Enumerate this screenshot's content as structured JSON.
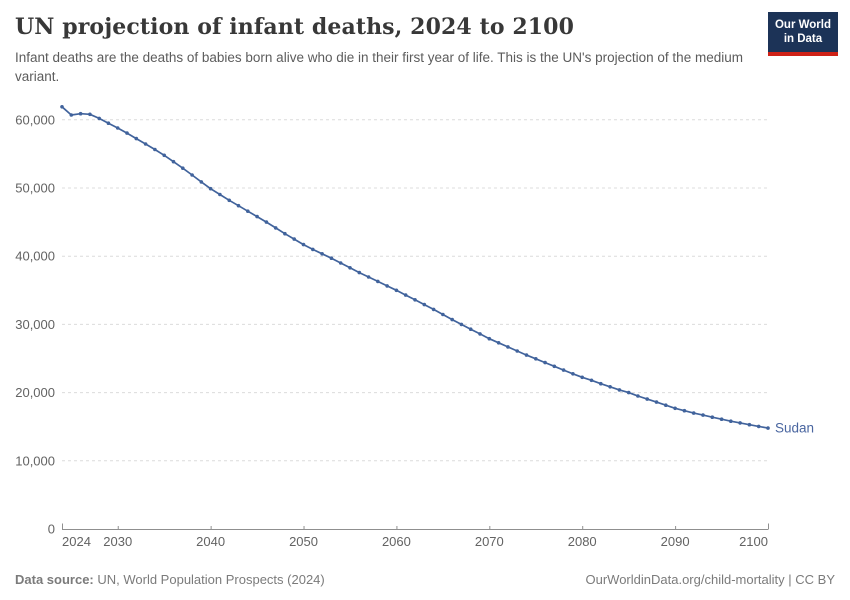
{
  "header": {
    "title": "UN projection of infant deaths, 2024 to 2100",
    "subtitle": "Infant deaths are the deaths of babies born alive who die in their first year of life. This is the UN's projection of the medium variant.",
    "logo": {
      "line1": "Our World",
      "line2": "in Data"
    }
  },
  "chart_data": {
    "type": "line",
    "title": "UN projection of infant deaths, 2024 to 2100",
    "entity_label": "Sudan",
    "xlabel": "",
    "ylabel": "",
    "xlim": [
      2024,
      2100
    ],
    "ylim": [
      0,
      62000
    ],
    "grid": "horizontal-dashed",
    "legend_position": "end-of-line-label",
    "xticks": [
      2024,
      2030,
      2040,
      2050,
      2060,
      2070,
      2080,
      2090,
      2100
    ],
    "yticks": [
      0,
      10000,
      20000,
      30000,
      40000,
      50000,
      60000
    ],
    "ytick_labels": [
      "0",
      "10,000",
      "20,000",
      "30,000",
      "40,000",
      "50,000",
      "60,000"
    ],
    "x": [
      2024,
      2025,
      2026,
      2027,
      2028,
      2029,
      2030,
      2031,
      2032,
      2033,
      2034,
      2035,
      2036,
      2037,
      2038,
      2039,
      2040,
      2041,
      2042,
      2043,
      2044,
      2045,
      2046,
      2047,
      2048,
      2049,
      2050,
      2051,
      2052,
      2053,
      2054,
      2055,
      2056,
      2057,
      2058,
      2059,
      2060,
      2061,
      2062,
      2063,
      2064,
      2065,
      2066,
      2067,
      2068,
      2069,
      2070,
      2071,
      2072,
      2073,
      2074,
      2075,
      2076,
      2077,
      2078,
      2079,
      2080,
      2081,
      2082,
      2083,
      2084,
      2085,
      2086,
      2087,
      2088,
      2089,
      2090,
      2091,
      2092,
      2093,
      2094,
      2095,
      2096,
      2097,
      2098,
      2099,
      2100
    ],
    "series": [
      {
        "name": "Sudan",
        "values": [
          61900,
          60700,
          60900,
          60800,
          60200,
          59500,
          58800,
          58050,
          57250,
          56450,
          55650,
          54800,
          53850,
          52900,
          51900,
          50900,
          49900,
          49050,
          48200,
          47400,
          46600,
          45800,
          45000,
          44150,
          43300,
          42500,
          41700,
          41000,
          40350,
          39700,
          39000,
          38300,
          37600,
          36950,
          36300,
          35650,
          35000,
          34300,
          33600,
          32900,
          32200,
          31450,
          30700,
          30000,
          29300,
          28600,
          27900,
          27300,
          26700,
          26100,
          25500,
          24950,
          24400,
          23850,
          23300,
          22750,
          22250,
          21800,
          21300,
          20850,
          20400,
          20000,
          19500,
          19050,
          18600,
          18150,
          17700,
          17350,
          17000,
          16700,
          16400,
          16100,
          15800,
          15550,
          15300,
          15050,
          14800
        ]
      }
    ],
    "colors": {
      "line": "#41639c",
      "marker": "#41639c",
      "entity_label": "#4a66a0",
      "gridline": "#dcdcdc",
      "axis": "#8f8f8f",
      "tick_label": "#636363"
    }
  },
  "footer": {
    "source_label": "Data source:",
    "source_text": " UN, World Population Prospects (2024)",
    "link_text": "OurWorldinData.org/child-mortality | CC BY"
  }
}
